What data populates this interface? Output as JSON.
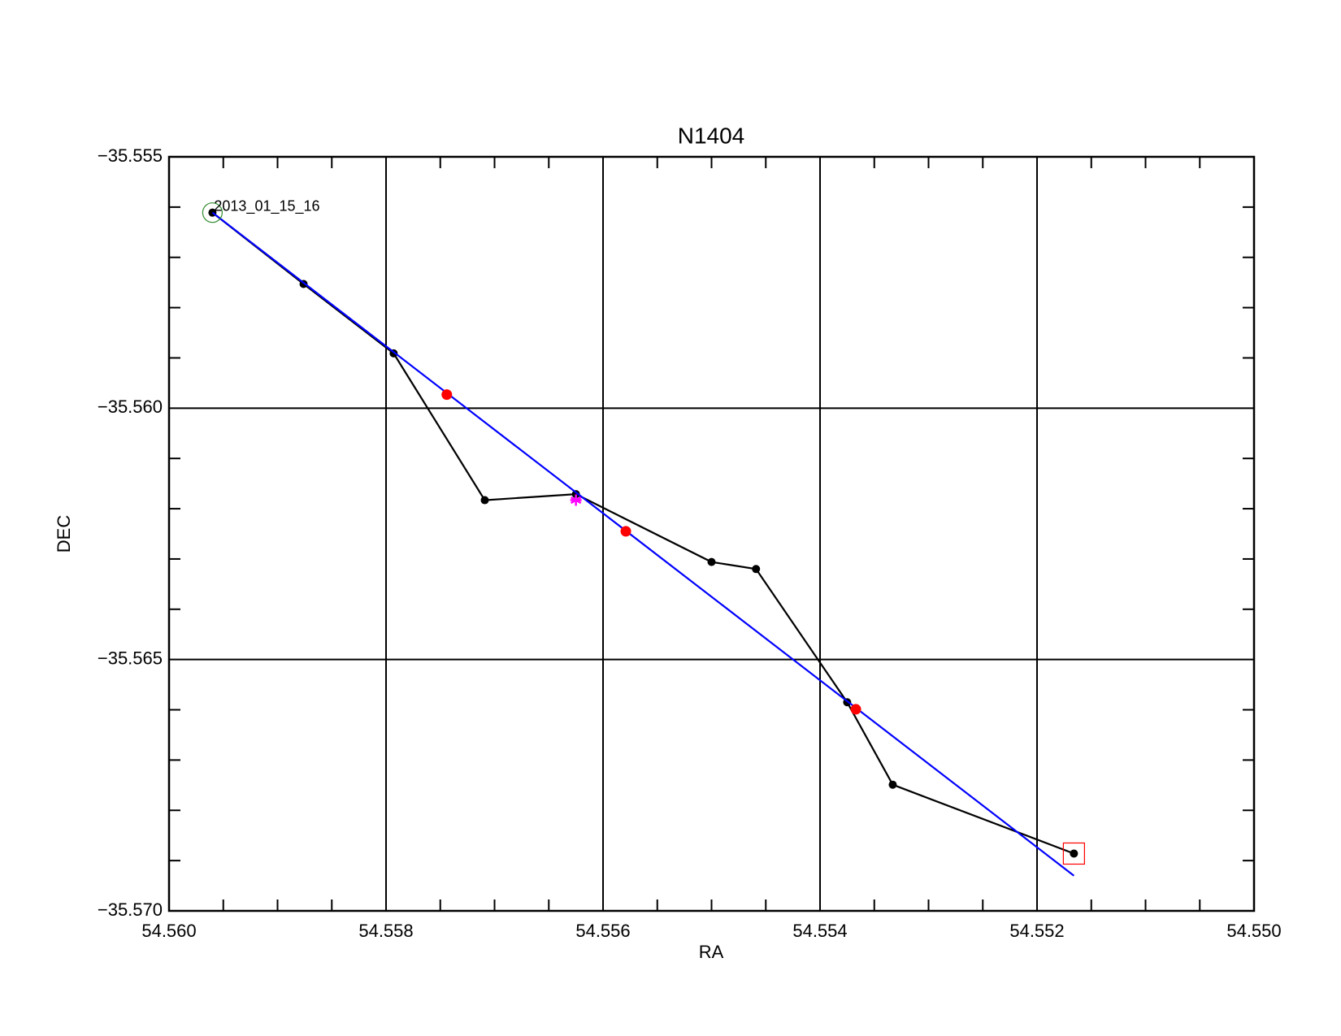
{
  "chart_data": {
    "type": "line",
    "title": "N1404",
    "xlabel": "RA",
    "ylabel": "DEC",
    "annotation": "2013_01_15_16",
    "xlim": [
      54.56,
      54.55
    ],
    "ylim": [
      -35.57,
      -35.555
    ],
    "xticks": [
      {
        "value": 54.56,
        "label": "54.560"
      },
      {
        "value": 54.558,
        "label": "54.558"
      },
      {
        "value": 54.556,
        "label": "54.556"
      },
      {
        "value": 54.554,
        "label": "54.554"
      },
      {
        "value": 54.552,
        "label": "54.552"
      },
      {
        "value": 54.55,
        "label": "54.550"
      }
    ],
    "yticks": [
      {
        "value": -35.57,
        "label": "−35.570"
      },
      {
        "value": -35.565,
        "label": "−35.565"
      },
      {
        "value": -35.56,
        "label": "−35.560"
      },
      {
        "value": -35.555,
        "label": "−35.555"
      }
    ],
    "xminor_ticks": [
      54.5595,
      54.559,
      54.5585,
      54.5575,
      54.557,
      54.5565,
      54.5555,
      54.555,
      54.5545,
      54.5535,
      54.553,
      54.5525,
      54.5515,
      54.551,
      54.5505
    ],
    "yminor_ticks": [
      -35.569,
      -35.568,
      -35.567,
      -35.566,
      -35.564,
      -35.563,
      -35.562,
      -35.561,
      -35.559,
      -35.558,
      -35.557,
      -35.556
    ],
    "grid": true,
    "series": [
      {
        "color": "#000000",
        "style": "line-points",
        "x": [
          54.5596,
          54.55876,
          54.55793,
          54.55709,
          54.55625,
          54.555,
          54.55459,
          54.55375,
          54.55333,
          54.55166
        ],
        "values": [
          -35.55611,
          -35.55753,
          -35.55891,
          -35.56183,
          -35.56171,
          -35.56306,
          -35.5632,
          -35.56585,
          -35.56749,
          -35.56886
        ]
      },
      {
        "color": "#0000ff",
        "style": "line",
        "x": [
          54.5596,
          54.55166
        ],
        "values": [
          -35.55611,
          -35.5693
        ]
      },
      {
        "color": "#ff0000",
        "style": "points",
        "x": [
          54.55744,
          54.55579,
          54.55367
        ],
        "values": [
          -35.55973,
          -35.56245,
          -35.56599
        ]
      },
      {
        "color": "#ff00ff",
        "style": "star",
        "x": [
          54.55625
        ],
        "values": [
          -35.56183
        ]
      }
    ],
    "start_marker_color": "#2e8b2e",
    "end_marker_color": "#ff0000"
  }
}
